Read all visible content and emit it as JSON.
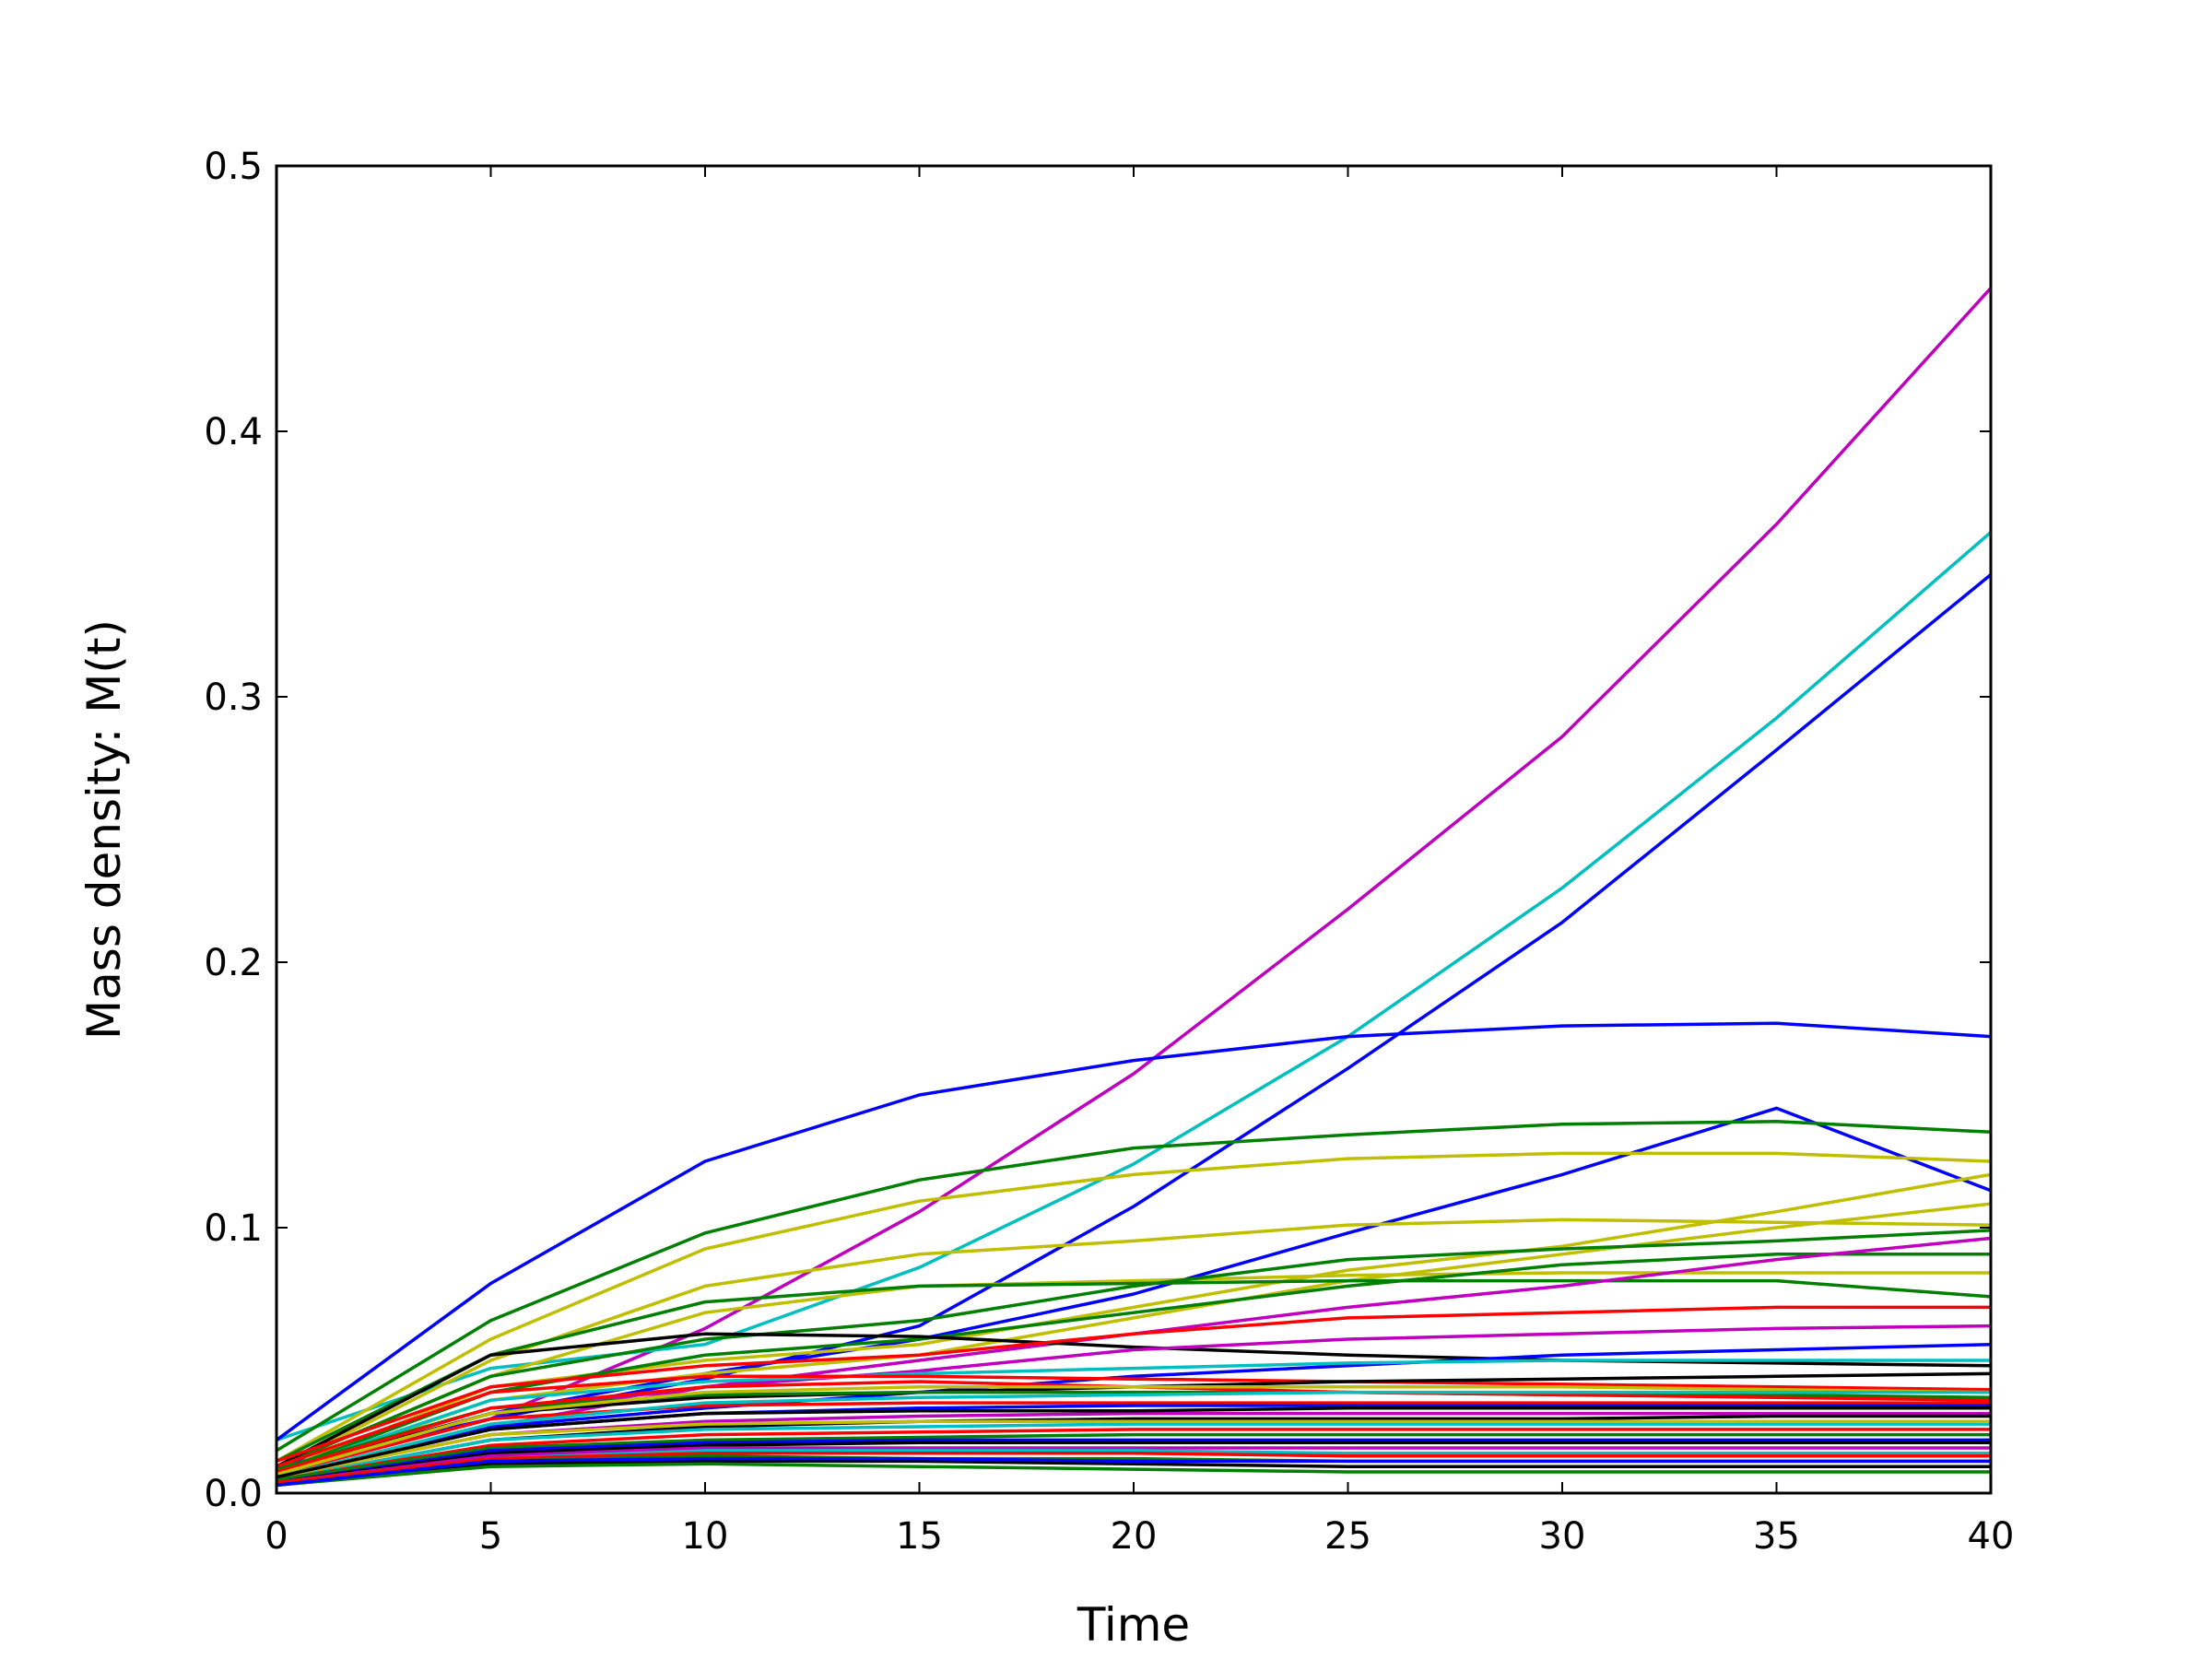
{
  "chart_data": {
    "type": "line",
    "title": "",
    "xlabel": "Time",
    "ylabel": "Mass density: M(t)",
    "xlim": [
      0,
      40
    ],
    "ylim": [
      0,
      0.5
    ],
    "xticks": [
      0,
      5,
      10,
      15,
      20,
      25,
      30,
      35,
      40
    ],
    "xtick_labels": [
      "0",
      "5",
      "10",
      "15",
      "20",
      "25",
      "30",
      "35",
      "40"
    ],
    "yticks": [
      0.0,
      0.1,
      0.2,
      0.3,
      0.4,
      0.5
    ],
    "ytick_labels": [
      "0.0",
      "0.1",
      "0.2",
      "0.3",
      "0.4",
      "0.5"
    ],
    "grid": false,
    "legend": "none",
    "x": [
      0,
      5,
      10,
      15,
      20,
      25,
      30,
      35,
      40
    ],
    "series": [
      {
        "color": "#bf00bf",
        "values": [
          0.007,
          0.028,
          0.062,
          0.106,
          0.158,
          0.22,
          0.285,
          0.365,
          0.454
        ]
      },
      {
        "color": "#00bfbf",
        "values": [
          0.02,
          0.047,
          0.056,
          0.085,
          0.124,
          0.172,
          0.228,
          0.292,
          0.362
        ]
      },
      {
        "color": "#0000ff",
        "values": [
          0.01,
          0.028,
          0.043,
          0.063,
          0.108,
          0.16,
          0.215,
          0.28,
          0.346
        ]
      },
      {
        "color": "#0000ff",
        "values": [
          0.02,
          0.079,
          0.125,
          0.15,
          0.163,
          0.172,
          0.176,
          0.177,
          0.172
        ]
      },
      {
        "color": "#0000ff",
        "values": [
          0.008,
          0.03,
          0.045,
          0.058,
          0.075,
          0.098,
          0.12,
          0.145,
          0.114
        ]
      },
      {
        "color": "#007f00",
        "values": [
          0.016,
          0.065,
          0.098,
          0.118,
          0.13,
          0.135,
          0.139,
          0.14,
          0.136
        ]
      },
      {
        "color": "#bfbf00",
        "values": [
          0.012,
          0.058,
          0.092,
          0.11,
          0.12,
          0.126,
          0.128,
          0.128,
          0.125
        ]
      },
      {
        "color": "#bfbf00",
        "values": [
          0.009,
          0.05,
          0.078,
          0.09,
          0.095,
          0.101,
          0.103,
          0.102,
          0.101
        ]
      },
      {
        "color": "#bfbf00",
        "values": [
          0.008,
          0.04,
          0.05,
          0.056,
          0.07,
          0.084,
          0.093,
          0.106,
          0.12
        ]
      },
      {
        "color": "#bfbf00",
        "values": [
          0.007,
          0.035,
          0.045,
          0.052,
          0.066,
          0.08,
          0.09,
          0.1,
          0.109
        ]
      },
      {
        "color": "#bfbf00",
        "values": [
          0.01,
          0.044,
          0.068,
          0.078,
          0.08,
          0.082,
          0.083,
          0.083,
          0.083
        ]
      },
      {
        "color": "#007f00",
        "values": [
          0.012,
          0.052,
          0.072,
          0.078,
          0.079,
          0.08,
          0.08,
          0.08,
          0.074
        ]
      },
      {
        "color": "#007f00",
        "values": [
          0.01,
          0.044,
          0.058,
          0.065,
          0.078,
          0.088,
          0.092,
          0.095,
          0.099
        ]
      },
      {
        "color": "#007f00",
        "values": [
          0.008,
          0.038,
          0.052,
          0.058,
          0.068,
          0.078,
          0.086,
          0.09,
          0.09
        ]
      },
      {
        "color": "#bf00bf",
        "values": [
          0.006,
          0.025,
          0.04,
          0.05,
          0.06,
          0.07,
          0.078,
          0.088,
          0.096
        ]
      },
      {
        "color": "#000000",
        "values": [
          0.01,
          0.052,
          0.06,
          0.059,
          0.055,
          0.052,
          0.05,
          0.049,
          0.048
        ]
      },
      {
        "color": "#ff0000",
        "values": [
          0.012,
          0.04,
          0.048,
          0.052,
          0.06,
          0.066,
          0.068,
          0.07,
          0.07
        ]
      },
      {
        "color": "#bf00bf",
        "values": [
          0.008,
          0.03,
          0.04,
          0.046,
          0.054,
          0.058,
          0.06,
          0.062,
          0.063
        ]
      },
      {
        "color": "#0000ff",
        "values": [
          0.006,
          0.025,
          0.032,
          0.038,
          0.044,
          0.048,
          0.052,
          0.054,
          0.056
        ]
      },
      {
        "color": "#00bfbf",
        "values": [
          0.008,
          0.035,
          0.042,
          0.045,
          0.047,
          0.049,
          0.05,
          0.05,
          0.05
        ]
      },
      {
        "color": "#ff0000",
        "values": [
          0.01,
          0.038,
          0.044,
          0.044,
          0.043,
          0.042,
          0.041,
          0.04,
          0.039
        ]
      },
      {
        "color": "#000000",
        "values": [
          0.008,
          0.03,
          0.036,
          0.038,
          0.04,
          0.042,
          0.043,
          0.044,
          0.045
        ]
      },
      {
        "color": "#007f00",
        "values": [
          0.009,
          0.032,
          0.037,
          0.038,
          0.038,
          0.038,
          0.037,
          0.037,
          0.036
        ]
      },
      {
        "color": "#ff0000",
        "values": [
          0.007,
          0.028,
          0.033,
          0.034,
          0.034,
          0.034,
          0.034,
          0.034,
          0.034
        ]
      },
      {
        "color": "#0000ff",
        "values": [
          0.006,
          0.024,
          0.03,
          0.032,
          0.033,
          0.033,
          0.033,
          0.033,
          0.033
        ]
      },
      {
        "color": "#bf00bf",
        "values": [
          0.006,
          0.022,
          0.027,
          0.029,
          0.03,
          0.03,
          0.03,
          0.03,
          0.03
        ]
      },
      {
        "color": "#000000",
        "values": [
          0.005,
          0.02,
          0.025,
          0.027,
          0.028,
          0.028,
          0.028,
          0.029,
          0.029
        ]
      },
      {
        "color": "#00bfbf",
        "values": [
          0.005,
          0.02,
          0.024,
          0.025,
          0.026,
          0.026,
          0.026,
          0.026,
          0.026
        ]
      },
      {
        "color": "#bfbf00",
        "values": [
          0.006,
          0.022,
          0.026,
          0.027,
          0.027,
          0.027,
          0.027,
          0.027,
          0.027
        ]
      },
      {
        "color": "#ff0000",
        "values": [
          0.005,
          0.018,
          0.022,
          0.023,
          0.024,
          0.024,
          0.024,
          0.024,
          0.024
        ]
      },
      {
        "color": "#007f00",
        "values": [
          0.005,
          0.017,
          0.02,
          0.021,
          0.022,
          0.022,
          0.022,
          0.022,
          0.022
        ]
      },
      {
        "color": "#0000ff",
        "values": [
          0.004,
          0.016,
          0.019,
          0.02,
          0.02,
          0.02,
          0.02,
          0.02,
          0.02
        ]
      },
      {
        "color": "#000000",
        "values": [
          0.004,
          0.015,
          0.018,
          0.019,
          0.019,
          0.019,
          0.019,
          0.019,
          0.019
        ]
      },
      {
        "color": "#bf00bf",
        "values": [
          0.004,
          0.014,
          0.017,
          0.017,
          0.017,
          0.017,
          0.017,
          0.017,
          0.017
        ]
      },
      {
        "color": "#00bfbf",
        "values": [
          0.004,
          0.013,
          0.016,
          0.016,
          0.016,
          0.015,
          0.015,
          0.015,
          0.015
        ]
      },
      {
        "color": "#ff0000",
        "values": [
          0.004,
          0.013,
          0.015,
          0.015,
          0.015,
          0.014,
          0.014,
          0.014,
          0.014
        ]
      },
      {
        "color": "#007f00",
        "values": [
          0.003,
          0.012,
          0.014,
          0.013,
          0.013,
          0.012,
          0.012,
          0.012,
          0.012
        ]
      },
      {
        "color": "#000000",
        "values": [
          0.003,
          0.011,
          0.012,
          0.012,
          0.011,
          0.01,
          0.01,
          0.01,
          0.01
        ]
      },
      {
        "color": "#007f00",
        "values": [
          0.003,
          0.01,
          0.011,
          0.01,
          0.009,
          0.008,
          0.008,
          0.008,
          0.008
        ]
      },
      {
        "color": "#0000ff",
        "values": [
          0.003,
          0.012,
          0.013,
          0.013,
          0.012,
          0.012,
          0.012,
          0.012,
          0.012
        ]
      },
      {
        "color": "#ff0000",
        "values": [
          0.008,
          0.032,
          0.04,
          0.042,
          0.04,
          0.038,
          0.037,
          0.036,
          0.035
        ]
      },
      {
        "color": "#bfbf00",
        "values": [
          0.007,
          0.03,
          0.038,
          0.04,
          0.04,
          0.04,
          0.04,
          0.039,
          0.038
        ]
      },
      {
        "color": "#00bfbf",
        "values": [
          0.006,
          0.026,
          0.034,
          0.036,
          0.037,
          0.038,
          0.038,
          0.038,
          0.038
        ]
      },
      {
        "color": "#000000",
        "values": [
          0.006,
          0.024,
          0.03,
          0.031,
          0.031,
          0.032,
          0.032,
          0.032,
          0.032
        ]
      }
    ]
  }
}
